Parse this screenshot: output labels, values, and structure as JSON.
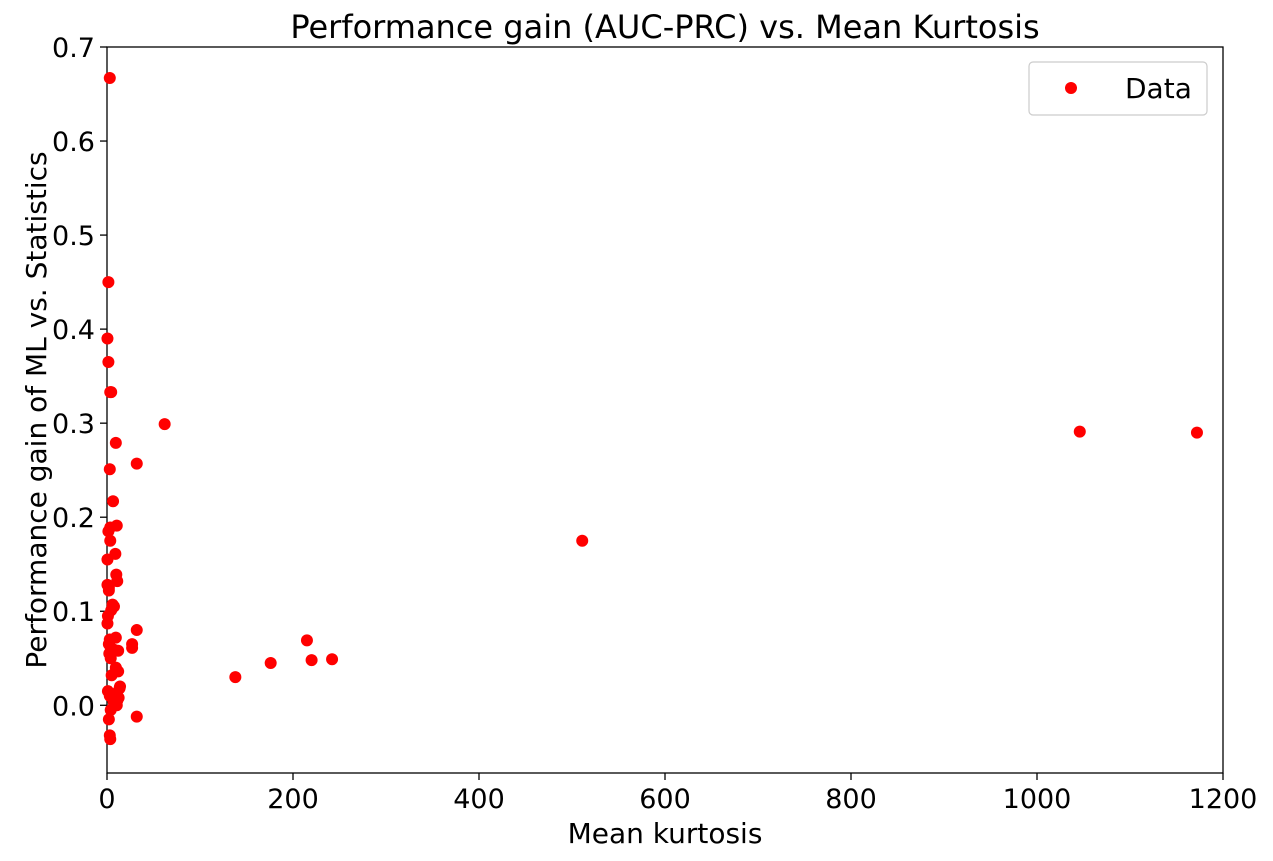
{
  "chart_data": {
    "type": "scatter",
    "title": "Performance gain (AUC-PRC) vs. Mean Kurtosis",
    "xlabel": "Mean kurtosis",
    "ylabel": "Performance gain of ML vs. Statistics",
    "xlim": [
      0,
      1200
    ],
    "ylim": [
      -0.072,
      0.7
    ],
    "xticks": [
      {
        "value": 0,
        "label": "0"
      },
      {
        "value": 200,
        "label": "200"
      },
      {
        "value": 400,
        "label": "400"
      },
      {
        "value": 600,
        "label": "600"
      },
      {
        "value": 800,
        "label": "800"
      },
      {
        "value": 1000,
        "label": "1000"
      },
      {
        "value": 1200,
        "label": "1200"
      }
    ],
    "yticks": [
      {
        "value": 0.0,
        "label": "0.0"
      },
      {
        "value": 0.1,
        "label": "0.1"
      },
      {
        "value": 0.2,
        "label": "0.2"
      },
      {
        "value": 0.3,
        "label": "0.3"
      },
      {
        "value": 0.4,
        "label": "0.4"
      },
      {
        "value": 0.5,
        "label": "0.5"
      },
      {
        "value": 0.6,
        "label": "0.6"
      },
      {
        "value": 0.7,
        "label": "0.7"
      }
    ],
    "grid": false,
    "legend": {
      "placement": "top-right"
    },
    "series": [
      {
        "name": "Data",
        "color": "#ff0000",
        "marker": "circle",
        "x": [
          3,
          1.5,
          0.5,
          1.5,
          3.5,
          4.5,
          9.5,
          3,
          6.5,
          3.5,
          10.5,
          1.5,
          3.5,
          9,
          0.5,
          10,
          11,
          0.5,
          2,
          2,
          6,
          7.5,
          4.5,
          1,
          0.5,
          9.5,
          3,
          2,
          4,
          7.5,
          2.5,
          4,
          12,
          9.5,
          12,
          5,
          14,
          13.5,
          1,
          8,
          12.5,
          3,
          11,
          7,
          8,
          10.5,
          4,
          3,
          3.5,
          2,
          32,
          62,
          32,
          32,
          27,
          27,
          138,
          176,
          215,
          220,
          242,
          511,
          1046,
          1172
        ],
        "y": [
          0.667,
          0.45,
          0.39,
          0.365,
          0.333,
          0.333,
          0.279,
          0.251,
          0.217,
          0.189,
          0.191,
          0.185,
          0.175,
          0.161,
          0.155,
          0.139,
          0.132,
          0.128,
          0.125,
          0.122,
          0.107,
          0.105,
          0.101,
          0.095,
          0.087,
          0.072,
          0.07,
          0.065,
          0.061,
          0.059,
          0.055,
          0.05,
          0.058,
          0.04,
          0.036,
          0.032,
          0.02,
          0.018,
          0.015,
          0.012,
          0.008,
          0.01,
          0.005,
          0.004,
          0.002,
          0.0,
          -0.005,
          -0.032,
          -0.036,
          -0.015,
          0.257,
          0.299,
          0.08,
          -0.012,
          0.065,
          0.061,
          0.03,
          0.045,
          0.069,
          0.048,
          0.049,
          0.175,
          0.291,
          0.29
        ]
      }
    ]
  }
}
